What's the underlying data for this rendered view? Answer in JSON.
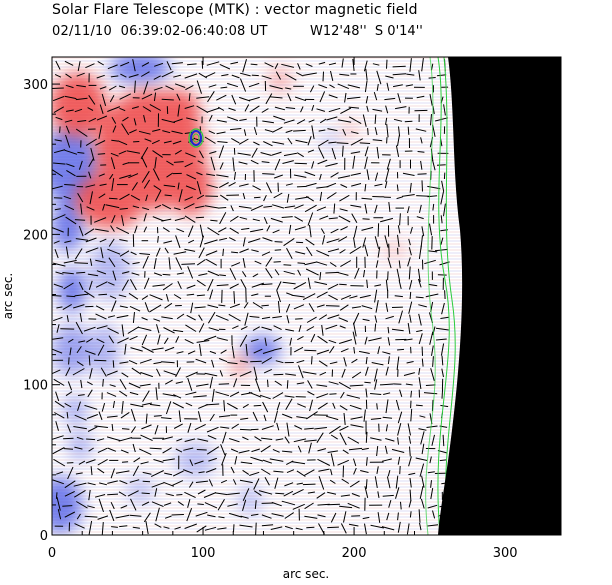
{
  "title": "Solar Flare Telescope (MTK) : vector magnetic field",
  "date_time": "02/11/10  06:39:02-06:40:08 UT",
  "position": "W12'48''  S 0'14''",
  "x_axis": {
    "label": "arc sec.",
    "ticks": [
      "0",
      "100",
      "200",
      "300"
    ],
    "range": [
      0,
      337
    ]
  },
  "y_axis": {
    "label": "arc sec.",
    "ticks": [
      "0",
      "100",
      "200",
      "300"
    ],
    "range": [
      0,
      318
    ]
  },
  "colors": {
    "positive_polarity": "#ee3b3b",
    "negative_polarity": "#3b4ee8",
    "contour": "#2ecc40",
    "limb_background": "#000000",
    "vector": "#000000"
  }
}
